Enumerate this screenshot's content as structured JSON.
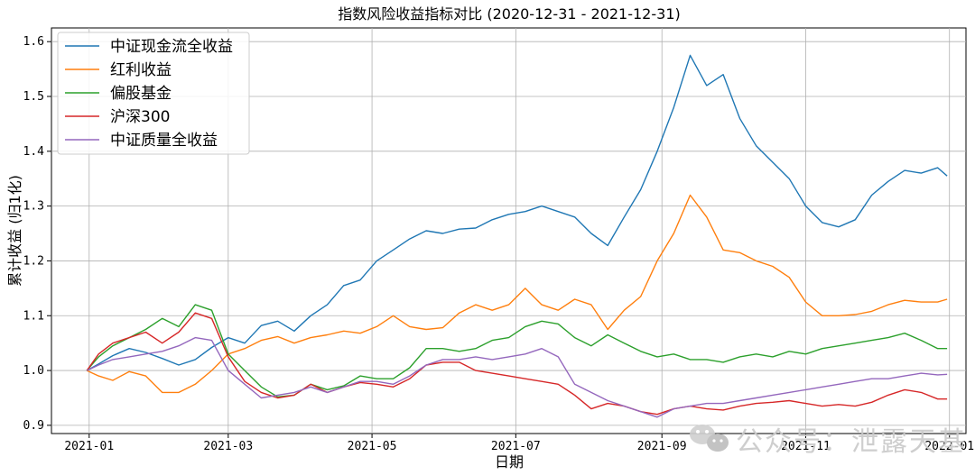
{
  "chart_data": {
    "type": "line",
    "title": "指数风险收益指标对比 (2020-12-31 - 2021-12-31)",
    "xlabel": "日期",
    "ylabel": "累计收益 (归1化)",
    "x_ticks": [
      "2021-01",
      "2021-03",
      "2021-05",
      "2021-07",
      "2021-09",
      "2021-11",
      "2022-01"
    ],
    "y_ticks": [
      "0.9",
      "1.0",
      "1.1",
      "1.2",
      "1.3",
      "1.4",
      "1.5",
      "1.6"
    ],
    "xlim": [
      "2020-12-16",
      "2022-01-08"
    ],
    "ylim": [
      0.885,
      1.625
    ],
    "grid": true,
    "legend_position": "upper left",
    "series": [
      {
        "name": "中证现金流全收益",
        "color": "#1f77b4",
        "points": [
          [
            "2020-12-31",
            1.0
          ],
          [
            "2021-01-05",
            1.012
          ],
          [
            "2021-01-11",
            1.027
          ],
          [
            "2021-01-18",
            1.04
          ],
          [
            "2021-01-25",
            1.033
          ],
          [
            "2021-02-01",
            1.022
          ],
          [
            "2021-02-08",
            1.01
          ],
          [
            "2021-02-15",
            1.02
          ],
          [
            "2021-02-22",
            1.042
          ],
          [
            "2021-03-01",
            1.06
          ],
          [
            "2021-03-08",
            1.05
          ],
          [
            "2021-03-15",
            1.082
          ],
          [
            "2021-03-22",
            1.09
          ],
          [
            "2021-03-29",
            1.072
          ],
          [
            "2021-04-05",
            1.1
          ],
          [
            "2021-04-12",
            1.12
          ],
          [
            "2021-04-19",
            1.155
          ],
          [
            "2021-04-26",
            1.165
          ],
          [
            "2021-05-03",
            1.2
          ],
          [
            "2021-05-10",
            1.22
          ],
          [
            "2021-05-17",
            1.24
          ],
          [
            "2021-05-24",
            1.255
          ],
          [
            "2021-05-31",
            1.25
          ],
          [
            "2021-06-07",
            1.258
          ],
          [
            "2021-06-14",
            1.26
          ],
          [
            "2021-06-21",
            1.275
          ],
          [
            "2021-06-28",
            1.285
          ],
          [
            "2021-07-05",
            1.29
          ],
          [
            "2021-07-12",
            1.3
          ],
          [
            "2021-07-19",
            1.29
          ],
          [
            "2021-07-26",
            1.28
          ],
          [
            "2021-08-02",
            1.25
          ],
          [
            "2021-08-09",
            1.228
          ],
          [
            "2021-08-16",
            1.28
          ],
          [
            "2021-08-23",
            1.33
          ],
          [
            "2021-08-30",
            1.4
          ],
          [
            "2021-09-06",
            1.48
          ],
          [
            "2021-09-13",
            1.575
          ],
          [
            "2021-09-20",
            1.52
          ],
          [
            "2021-09-27",
            1.54
          ],
          [
            "2021-10-04",
            1.46
          ],
          [
            "2021-10-11",
            1.41
          ],
          [
            "2021-10-18",
            1.38
          ],
          [
            "2021-10-25",
            1.35
          ],
          [
            "2021-11-01",
            1.3
          ],
          [
            "2021-11-08",
            1.27
          ],
          [
            "2021-11-15",
            1.262
          ],
          [
            "2021-11-22",
            1.275
          ],
          [
            "2021-11-29",
            1.32
          ],
          [
            "2021-12-06",
            1.345
          ],
          [
            "2021-12-13",
            1.365
          ],
          [
            "2021-12-20",
            1.36
          ],
          [
            "2021-12-27",
            1.37
          ],
          [
            "2021-12-31",
            1.355
          ]
        ]
      },
      {
        "name": "红利收益",
        "color": "#ff7f0e",
        "points": [
          [
            "2020-12-31",
            1.0
          ],
          [
            "2021-01-05",
            0.99
          ],
          [
            "2021-01-11",
            0.982
          ],
          [
            "2021-01-18",
            0.998
          ],
          [
            "2021-01-25",
            0.99
          ],
          [
            "2021-02-01",
            0.96
          ],
          [
            "2021-02-08",
            0.96
          ],
          [
            "2021-02-15",
            0.975
          ],
          [
            "2021-02-22",
            1.0
          ],
          [
            "2021-03-01",
            1.03
          ],
          [
            "2021-03-08",
            1.04
          ],
          [
            "2021-03-15",
            1.055
          ],
          [
            "2021-03-22",
            1.062
          ],
          [
            "2021-03-29",
            1.05
          ],
          [
            "2021-04-05",
            1.06
          ],
          [
            "2021-04-12",
            1.065
          ],
          [
            "2021-04-19",
            1.072
          ],
          [
            "2021-04-26",
            1.068
          ],
          [
            "2021-05-03",
            1.08
          ],
          [
            "2021-05-10",
            1.1
          ],
          [
            "2021-05-17",
            1.08
          ],
          [
            "2021-05-24",
            1.075
          ],
          [
            "2021-05-31",
            1.078
          ],
          [
            "2021-06-07",
            1.105
          ],
          [
            "2021-06-14",
            1.12
          ],
          [
            "2021-06-21",
            1.11
          ],
          [
            "2021-06-28",
            1.12
          ],
          [
            "2021-07-05",
            1.15
          ],
          [
            "2021-07-12",
            1.12
          ],
          [
            "2021-07-19",
            1.11
          ],
          [
            "2021-07-26",
            1.13
          ],
          [
            "2021-08-02",
            1.12
          ],
          [
            "2021-08-09",
            1.075
          ],
          [
            "2021-08-16",
            1.11
          ],
          [
            "2021-08-23",
            1.135
          ],
          [
            "2021-08-30",
            1.2
          ],
          [
            "2021-09-06",
            1.25
          ],
          [
            "2021-09-13",
            1.32
          ],
          [
            "2021-09-20",
            1.28
          ],
          [
            "2021-09-27",
            1.22
          ],
          [
            "2021-10-04",
            1.215
          ],
          [
            "2021-10-11",
            1.2
          ],
          [
            "2021-10-18",
            1.19
          ],
          [
            "2021-10-25",
            1.17
          ],
          [
            "2021-11-01",
            1.125
          ],
          [
            "2021-11-08",
            1.1
          ],
          [
            "2021-11-15",
            1.1
          ],
          [
            "2021-11-22",
            1.102
          ],
          [
            "2021-11-29",
            1.108
          ],
          [
            "2021-12-06",
            1.12
          ],
          [
            "2021-12-13",
            1.128
          ],
          [
            "2021-12-20",
            1.125
          ],
          [
            "2021-12-27",
            1.125
          ],
          [
            "2021-12-31",
            1.13
          ]
        ]
      },
      {
        "name": "偏股基金",
        "color": "#2ca02c",
        "points": [
          [
            "2020-12-31",
            1.0
          ],
          [
            "2021-01-05",
            1.025
          ],
          [
            "2021-01-11",
            1.045
          ],
          [
            "2021-01-18",
            1.06
          ],
          [
            "2021-01-25",
            1.075
          ],
          [
            "2021-02-01",
            1.095
          ],
          [
            "2021-02-08",
            1.08
          ],
          [
            "2021-02-15",
            1.12
          ],
          [
            "2021-02-22",
            1.11
          ],
          [
            "2021-03-01",
            1.03
          ],
          [
            "2021-03-08",
            1.0
          ],
          [
            "2021-03-15",
            0.97
          ],
          [
            "2021-03-22",
            0.952
          ],
          [
            "2021-03-29",
            0.955
          ],
          [
            "2021-04-05",
            0.975
          ],
          [
            "2021-04-12",
            0.965
          ],
          [
            "2021-04-19",
            0.972
          ],
          [
            "2021-04-26",
            0.99
          ],
          [
            "2021-05-03",
            0.985
          ],
          [
            "2021-05-10",
            0.985
          ],
          [
            "2021-05-17",
            1.005
          ],
          [
            "2021-05-24",
            1.04
          ],
          [
            "2021-05-31",
            1.04
          ],
          [
            "2021-06-07",
            1.035
          ],
          [
            "2021-06-14",
            1.04
          ],
          [
            "2021-06-21",
            1.055
          ],
          [
            "2021-06-28",
            1.06
          ],
          [
            "2021-07-05",
            1.08
          ],
          [
            "2021-07-12",
            1.09
          ],
          [
            "2021-07-19",
            1.085
          ],
          [
            "2021-07-26",
            1.06
          ],
          [
            "2021-08-02",
            1.045
          ],
          [
            "2021-08-09",
            1.065
          ],
          [
            "2021-08-16",
            1.05
          ],
          [
            "2021-08-23",
            1.035
          ],
          [
            "2021-08-30",
            1.025
          ],
          [
            "2021-09-06",
            1.03
          ],
          [
            "2021-09-13",
            1.02
          ],
          [
            "2021-09-20",
            1.02
          ],
          [
            "2021-09-27",
            1.015
          ],
          [
            "2021-10-04",
            1.025
          ],
          [
            "2021-10-11",
            1.03
          ],
          [
            "2021-10-18",
            1.025
          ],
          [
            "2021-10-25",
            1.035
          ],
          [
            "2021-11-01",
            1.03
          ],
          [
            "2021-11-08",
            1.04
          ],
          [
            "2021-11-15",
            1.045
          ],
          [
            "2021-11-22",
            1.05
          ],
          [
            "2021-11-29",
            1.055
          ],
          [
            "2021-12-06",
            1.06
          ],
          [
            "2021-12-13",
            1.068
          ],
          [
            "2021-12-20",
            1.055
          ],
          [
            "2021-12-27",
            1.04
          ],
          [
            "2021-12-31",
            1.04
          ]
        ]
      },
      {
        "name": "沪深300",
        "color": "#d62728",
        "points": [
          [
            "2020-12-31",
            1.0
          ],
          [
            "2021-01-05",
            1.03
          ],
          [
            "2021-01-11",
            1.05
          ],
          [
            "2021-01-18",
            1.06
          ],
          [
            "2021-01-25",
            1.07
          ],
          [
            "2021-02-01",
            1.05
          ],
          [
            "2021-02-08",
            1.07
          ],
          [
            "2021-02-15",
            1.105
          ],
          [
            "2021-02-22",
            1.095
          ],
          [
            "2021-03-01",
            1.025
          ],
          [
            "2021-03-08",
            0.98
          ],
          [
            "2021-03-15",
            0.96
          ],
          [
            "2021-03-22",
            0.95
          ],
          [
            "2021-03-29",
            0.955
          ],
          [
            "2021-04-05",
            0.975
          ],
          [
            "2021-04-12",
            0.96
          ],
          [
            "2021-04-19",
            0.97
          ],
          [
            "2021-04-26",
            0.978
          ],
          [
            "2021-05-03",
            0.975
          ],
          [
            "2021-05-10",
            0.97
          ],
          [
            "2021-05-17",
            0.985
          ],
          [
            "2021-05-24",
            1.01
          ],
          [
            "2021-05-31",
            1.015
          ],
          [
            "2021-06-07",
            1.015
          ],
          [
            "2021-06-14",
            1.0
          ],
          [
            "2021-06-21",
            0.995
          ],
          [
            "2021-06-28",
            0.99
          ],
          [
            "2021-07-05",
            0.985
          ],
          [
            "2021-07-12",
            0.98
          ],
          [
            "2021-07-19",
            0.975
          ],
          [
            "2021-07-26",
            0.955
          ],
          [
            "2021-08-02",
            0.93
          ],
          [
            "2021-08-09",
            0.94
          ],
          [
            "2021-08-16",
            0.935
          ],
          [
            "2021-08-23",
            0.925
          ],
          [
            "2021-08-30",
            0.92
          ],
          [
            "2021-09-06",
            0.93
          ],
          [
            "2021-09-13",
            0.935
          ],
          [
            "2021-09-20",
            0.93
          ],
          [
            "2021-09-27",
            0.928
          ],
          [
            "2021-10-04",
            0.935
          ],
          [
            "2021-10-11",
            0.94
          ],
          [
            "2021-10-18",
            0.942
          ],
          [
            "2021-10-25",
            0.945
          ],
          [
            "2021-11-01",
            0.94
          ],
          [
            "2021-11-08",
            0.935
          ],
          [
            "2021-11-15",
            0.938
          ],
          [
            "2021-11-22",
            0.935
          ],
          [
            "2021-11-29",
            0.942
          ],
          [
            "2021-12-06",
            0.955
          ],
          [
            "2021-12-13",
            0.965
          ],
          [
            "2021-12-20",
            0.96
          ],
          [
            "2021-12-27",
            0.948
          ],
          [
            "2021-12-31",
            0.948
          ]
        ]
      },
      {
        "name": "中证质量全收益",
        "color": "#9467bd",
        "points": [
          [
            "2020-12-31",
            1.0
          ],
          [
            "2021-01-05",
            1.01
          ],
          [
            "2021-01-11",
            1.02
          ],
          [
            "2021-01-18",
            1.025
          ],
          [
            "2021-01-25",
            1.03
          ],
          [
            "2021-02-01",
            1.035
          ],
          [
            "2021-02-08",
            1.045
          ],
          [
            "2021-02-15",
            1.06
          ],
          [
            "2021-02-22",
            1.055
          ],
          [
            "2021-03-01",
            1.0
          ],
          [
            "2021-03-08",
            0.975
          ],
          [
            "2021-03-15",
            0.95
          ],
          [
            "2021-03-22",
            0.955
          ],
          [
            "2021-03-29",
            0.96
          ],
          [
            "2021-04-05",
            0.97
          ],
          [
            "2021-04-12",
            0.96
          ],
          [
            "2021-04-19",
            0.97
          ],
          [
            "2021-04-26",
            0.98
          ],
          [
            "2021-05-03",
            0.98
          ],
          [
            "2021-05-10",
            0.975
          ],
          [
            "2021-05-17",
            0.99
          ],
          [
            "2021-05-24",
            1.01
          ],
          [
            "2021-05-31",
            1.02
          ],
          [
            "2021-06-07",
            1.02
          ],
          [
            "2021-06-14",
            1.025
          ],
          [
            "2021-06-21",
            1.02
          ],
          [
            "2021-06-28",
            1.025
          ],
          [
            "2021-07-05",
            1.03
          ],
          [
            "2021-07-12",
            1.04
          ],
          [
            "2021-07-19",
            1.025
          ],
          [
            "2021-07-26",
            0.975
          ],
          [
            "2021-08-02",
            0.96
          ],
          [
            "2021-08-09",
            0.945
          ],
          [
            "2021-08-16",
            0.935
          ],
          [
            "2021-08-23",
            0.925
          ],
          [
            "2021-08-30",
            0.915
          ],
          [
            "2021-09-06",
            0.93
          ],
          [
            "2021-09-13",
            0.935
          ],
          [
            "2021-09-20",
            0.94
          ],
          [
            "2021-09-27",
            0.94
          ],
          [
            "2021-10-04",
            0.945
          ],
          [
            "2021-10-11",
            0.95
          ],
          [
            "2021-10-18",
            0.955
          ],
          [
            "2021-10-25",
            0.96
          ],
          [
            "2021-11-01",
            0.965
          ],
          [
            "2021-11-08",
            0.97
          ],
          [
            "2021-11-15",
            0.975
          ],
          [
            "2021-11-22",
            0.98
          ],
          [
            "2021-11-29",
            0.985
          ],
          [
            "2021-12-06",
            0.985
          ],
          [
            "2021-12-13",
            0.99
          ],
          [
            "2021-12-20",
            0.995
          ],
          [
            "2021-12-27",
            0.992
          ],
          [
            "2021-12-31",
            0.993
          ]
        ]
      }
    ]
  },
  "watermark": {
    "text": "公众号：泄露天基",
    "icon": "wechat-icon"
  }
}
